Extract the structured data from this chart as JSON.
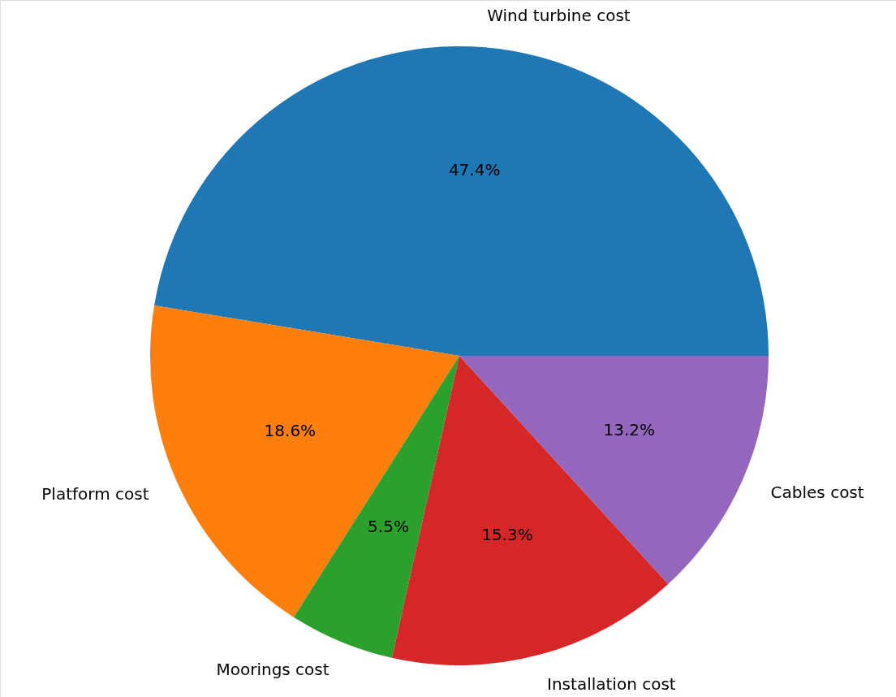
{
  "chart_data": {
    "type": "pie",
    "categories": [
      "Wind turbine cost",
      "Platform cost",
      "Moorings cost",
      "Installation cost",
      "Cables cost"
    ],
    "values": [
      47.4,
      18.6,
      5.5,
      15.3,
      13.2
    ],
    "colors": [
      "#1f77b4",
      "#ff7f0e",
      "#2ca02c",
      "#d62728",
      "#9467bd"
    ],
    "value_labels": [
      "47.4%",
      "18.6%",
      "5.5%",
      "15.3%",
      "13.2%"
    ]
  }
}
